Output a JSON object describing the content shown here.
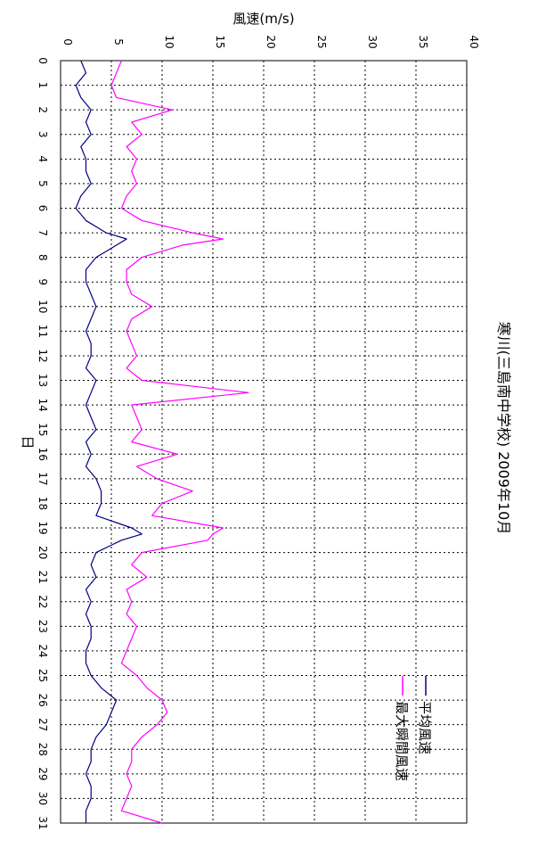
{
  "chart_data": {
    "type": "line",
    "orientation": "rotated-90-clockwise",
    "title": "寒川(三島南中学校)  2009年10月",
    "xlabel": "日",
    "ylabel": "風速(m/s)",
    "x_ticks": [
      "0",
      "1",
      "2",
      "3",
      "4",
      "5",
      "6",
      "7",
      "8",
      "9",
      "10",
      "11",
      "12",
      "13",
      "14",
      "15",
      "16",
      "17",
      "18",
      "19",
      "20",
      "21",
      "22",
      "23",
      "24",
      "25",
      "26",
      "27",
      "28",
      "29",
      "30",
      "31"
    ],
    "y_ticks": [
      "0",
      "5",
      "10",
      "15",
      "20",
      "25",
      "30",
      "35",
      "40"
    ],
    "xlim": [
      0,
      31
    ],
    "ylim": [
      0,
      40
    ],
    "grid": true,
    "legend_position": "lower-right",
    "series": [
      {
        "name": "平均風速",
        "color": "#000080",
        "x": [
          0,
          0.5,
          1,
          1.5,
          2,
          2.5,
          3,
          3.5,
          4,
          4.5,
          5,
          5.5,
          6,
          6.5,
          7,
          7.25,
          7.5,
          8,
          8.5,
          9,
          9.5,
          10,
          10.5,
          11,
          11.5,
          12,
          12.5,
          13,
          13.5,
          14,
          14.5,
          15,
          15.5,
          16,
          16.5,
          17,
          17.5,
          18,
          18.5,
          19,
          19.25,
          19.5,
          20,
          20.5,
          21,
          21.5,
          22,
          22.5,
          23,
          23.5,
          24,
          24.5,
          25,
          25.5,
          26,
          26.5,
          27,
          27.5,
          28,
          28.5,
          29,
          29.5,
          30,
          30.5,
          31
        ],
        "y": [
          2.0,
          2.5,
          1.5,
          2.0,
          3.0,
          2.5,
          3.0,
          2.0,
          2.5,
          2.5,
          3.0,
          2.0,
          1.5,
          2.5,
          4.5,
          6.5,
          5.5,
          3.5,
          2.5,
          2.5,
          3.0,
          3.5,
          3.0,
          2.5,
          3.0,
          3.0,
          2.5,
          3.5,
          3.0,
          2.5,
          3.0,
          3.5,
          2.5,
          3.0,
          2.5,
          3.5,
          4.0,
          4.0,
          3.5,
          7.0,
          8.0,
          6.0,
          3.5,
          3.0,
          3.5,
          2.5,
          3.0,
          2.5,
          3.0,
          3.0,
          2.5,
          2.5,
          3.0,
          4.0,
          5.5,
          5.0,
          4.5,
          3.5,
          3.0,
          3.0,
          2.5,
          3.0,
          3.0,
          2.5,
          2.5
        ]
      },
      {
        "name": "最大瞬間風速",
        "color": "#ff00ff",
        "x": [
          0,
          0.5,
          1,
          1.5,
          2,
          2.5,
          3,
          3.5,
          4,
          4.5,
          5,
          5.5,
          6,
          6.5,
          7,
          7.25,
          7.5,
          8,
          8.5,
          9,
          9.5,
          10,
          10.5,
          11,
          11.5,
          12,
          12.5,
          13,
          13.5,
          14,
          14.5,
          15,
          15.5,
          16,
          16.5,
          17,
          17.5,
          18,
          18.5,
          19,
          19.25,
          19.5,
          20,
          20.5,
          21,
          21.5,
          22,
          22.5,
          23,
          23.5,
          24,
          24.5,
          25,
          25.5,
          26,
          26.5,
          27,
          27.5,
          28,
          28.5,
          29,
          29.5,
          30,
          30.5,
          31
        ],
        "y": [
          6.0,
          5.5,
          5.0,
          5.5,
          11.0,
          7.0,
          8.0,
          6.5,
          7.5,
          7.0,
          7.5,
          6.5,
          6.0,
          8.0,
          13.0,
          16.0,
          12.0,
          8.0,
          6.5,
          6.5,
          7.0,
          9.0,
          7.0,
          6.5,
          7.0,
          7.5,
          6.5,
          8.0,
          18.5,
          7.0,
          7.5,
          8.0,
          7.0,
          11.5,
          7.5,
          9.5,
          13.0,
          10.0,
          9.0,
          16.0,
          15.0,
          14.5,
          8.0,
          7.0,
          8.5,
          6.5,
          7.0,
          6.5,
          7.5,
          7.0,
          6.5,
          6.0,
          7.5,
          8.5,
          10.0,
          10.5,
          9.5,
          8.0,
          7.0,
          7.0,
          6.5,
          7.0,
          6.5,
          6.0,
          10.0
        ]
      }
    ]
  }
}
